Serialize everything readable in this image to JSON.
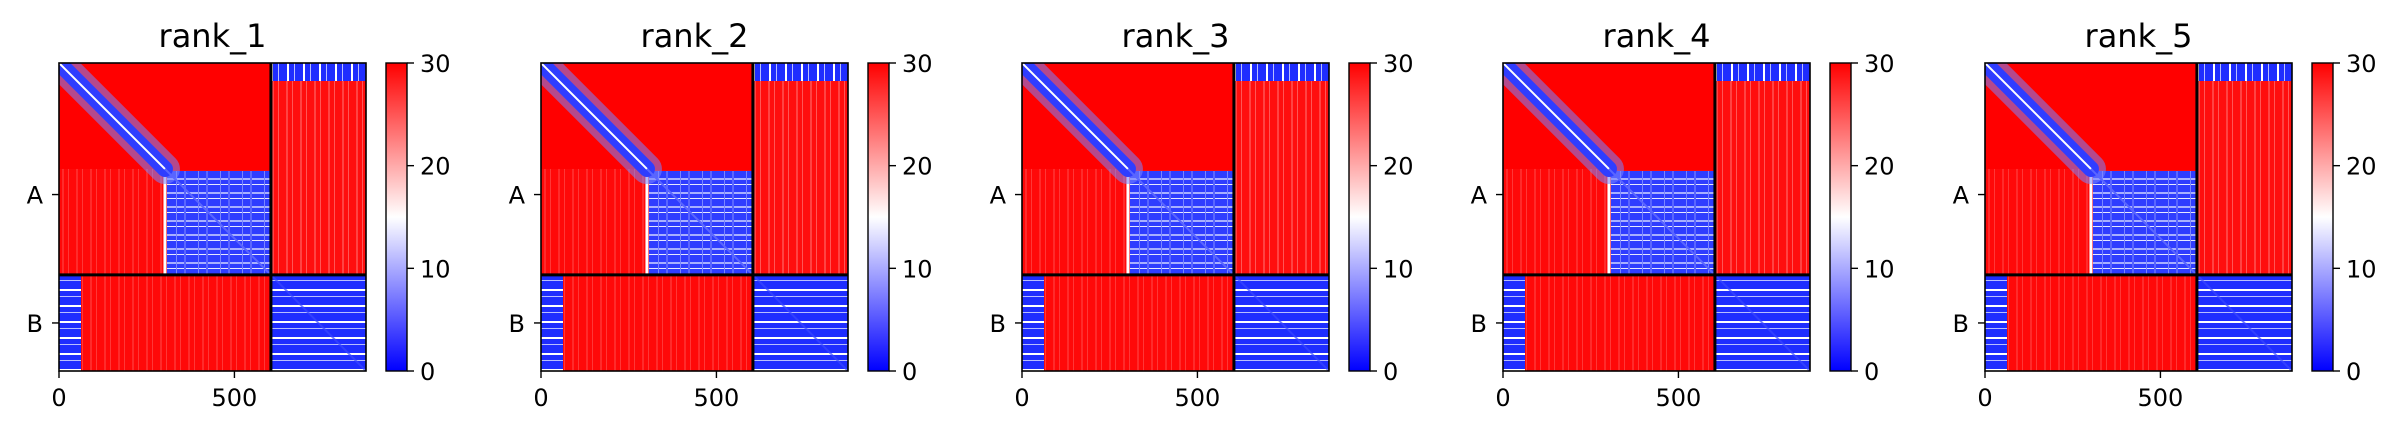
{
  "chart_data": {
    "type": "heatmap",
    "colormap": {
      "low": "#0000ff",
      "mid": "#ffffff",
      "high": "#ff0000"
    },
    "clim": [
      0,
      30
    ],
    "colorbar_ticks": [
      "0",
      "10",
      "20",
      "30"
    ],
    "x_range": [
      0,
      875
    ],
    "x_ticks": [
      {
        "value": 0,
        "label": "0"
      },
      {
        "value": 500,
        "label": "500"
      }
    ],
    "chain_boundary": 604,
    "chains": [
      "A",
      "B"
    ],
    "panels": [
      {
        "title": "rank_1"
      },
      {
        "title": "rank_2"
      },
      {
        "title": "rank_3"
      },
      {
        "title": "rank_4"
      },
      {
        "title": "rank_5"
      }
    ]
  }
}
